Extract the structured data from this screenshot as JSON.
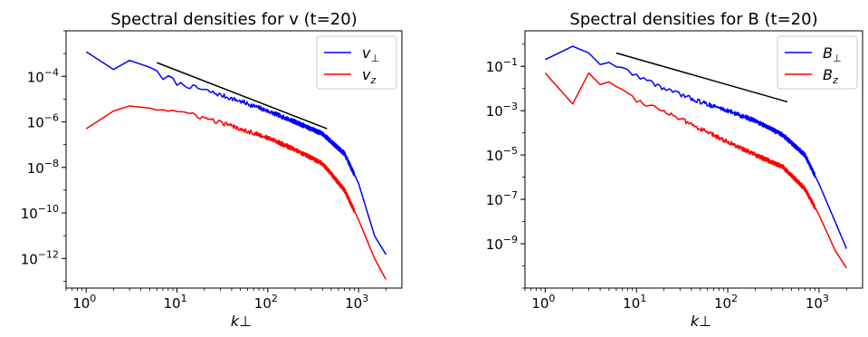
{
  "chart_data": [
    {
      "type": "line",
      "title": "Spectral densities for v (t=20)",
      "xlabel": "k⊥",
      "ylabel": "",
      "xscale": "log",
      "yscale": "log",
      "xlim": [
        0.6,
        3000
      ],
      "ylim": [
        5e-14,
        0.01
      ],
      "xticks": [
        {
          "value": 1,
          "base": "10",
          "exp": "0"
        },
        {
          "value": 10,
          "base": "10",
          "exp": "1"
        },
        {
          "value": 100,
          "base": "10",
          "exp": "2"
        },
        {
          "value": 1000,
          "base": "10",
          "exp": "3"
        }
      ],
      "yticks": [
        {
          "value": 0.0001,
          "base": "10",
          "exp": "−4"
        },
        {
          "value": 1e-06,
          "base": "10",
          "exp": "−6"
        },
        {
          "value": 1e-08,
          "base": "10",
          "exp": "−8"
        },
        {
          "value": 1e-10,
          "base": "10",
          "exp": "−10"
        },
        {
          "value": 1e-12,
          "base": "10",
          "exp": "−12"
        }
      ],
      "grid": false,
      "legend_position": "top-right",
      "series": [
        {
          "name": "v⊥",
          "legend_main": "v",
          "legend_sub": "⊥",
          "color": "#0000ff",
          "noise": 0.1,
          "points": [
            [
              1,
              0.0012
            ],
            [
              2,
              0.0002
            ],
            [
              3,
              0.0005
            ],
            [
              5,
              0.00025
            ],
            [
              6,
              0.0002
            ],
            [
              7,
              6e-05
            ],
            [
              8,
              0.0001
            ],
            [
              10,
              5e-05
            ],
            [
              20,
              2.5e-05
            ],
            [
              50,
              8e-06
            ],
            [
              100,
              3e-06
            ],
            [
              200,
              1e-06
            ],
            [
              400,
              3e-07
            ],
            [
              700,
              4e-08
            ],
            [
              1000,
              2e-09
            ],
            [
              1500,
              1e-11
            ],
            [
              2000,
              1.5e-12
            ]
          ]
        },
        {
          "name": "vz",
          "legend_main": "v",
          "legend_sub": "z",
          "color": "#ff0000",
          "noise": 0.1,
          "points": [
            [
              1,
              5e-07
            ],
            [
              2,
              3e-06
            ],
            [
              3,
              5e-06
            ],
            [
              5,
              4e-06
            ],
            [
              10,
              3e-06
            ],
            [
              20,
              1.5e-06
            ],
            [
              50,
              5e-07
            ],
            [
              100,
              2e-07
            ],
            [
              200,
              6e-08
            ],
            [
              400,
              1.5e-08
            ],
            [
              700,
              1e-09
            ],
            [
              1000,
              5e-11
            ],
            [
              1500,
              1e-12
            ],
            [
              2000,
              1.2e-13
            ]
          ]
        }
      ],
      "reference_line": {
        "color": "#000000",
        "points": [
          [
            6,
            0.0004
          ],
          [
            450,
            5e-07
          ]
        ]
      }
    },
    {
      "type": "line",
      "title": "Spectral densities for B (t=20)",
      "xlabel": "k⊥",
      "ylabel": "",
      "xscale": "log",
      "yscale": "log",
      "xlim": [
        0.6,
        3000
      ],
      "ylim": [
        1e-11,
        4
      ],
      "xticks": [
        {
          "value": 1,
          "base": "10",
          "exp": "0"
        },
        {
          "value": 10,
          "base": "10",
          "exp": "1"
        },
        {
          "value": 100,
          "base": "10",
          "exp": "2"
        },
        {
          "value": 1000,
          "base": "10",
          "exp": "3"
        }
      ],
      "yticks": [
        {
          "value": 0.1,
          "base": "10",
          "exp": "−1"
        },
        {
          "value": 0.001,
          "base": "10",
          "exp": "−3"
        },
        {
          "value": 1e-05,
          "base": "10",
          "exp": "−5"
        },
        {
          "value": 1e-07,
          "base": "10",
          "exp": "−7"
        },
        {
          "value": 1e-09,
          "base": "10",
          "exp": "−9"
        }
      ],
      "grid": false,
      "legend_position": "top-right",
      "series": [
        {
          "name": "B⊥",
          "legend_main": "B",
          "legend_sub": "⊥",
          "color": "#0000ff",
          "noise": 0.1,
          "points": [
            [
              1,
              0.2
            ],
            [
              2,
              0.8
            ],
            [
              3,
              0.4
            ],
            [
              4,
              0.12
            ],
            [
              5,
              0.15
            ],
            [
              7,
              0.08
            ],
            [
              10,
              0.04
            ],
            [
              20,
              0.01
            ],
            [
              50,
              0.0025
            ],
            [
              100,
              0.001
            ],
            [
              200,
              0.00035
            ],
            [
              400,
              8e-05
            ],
            [
              700,
              1e-05
            ],
            [
              1000,
              5e-07
            ],
            [
              1500,
              1e-08
            ],
            [
              2000,
              6e-10
            ]
          ]
        },
        {
          "name": "Bz",
          "legend_main": "B",
          "legend_sub": "z",
          "color": "#ff0000",
          "noise": 0.1,
          "points": [
            [
              1,
              0.05
            ],
            [
              2,
              0.002
            ],
            [
              3,
              0.05
            ],
            [
              4,
              0.015
            ],
            [
              5,
              0.02
            ],
            [
              7,
              0.01
            ],
            [
              10,
              0.003
            ],
            [
              20,
              0.001
            ],
            [
              50,
              0.00015
            ],
            [
              100,
              4e-05
            ],
            [
              200,
              1e-05
            ],
            [
              400,
              3e-06
            ],
            [
              700,
              3e-07
            ],
            [
              1000,
              2e-08
            ],
            [
              1500,
              5e-10
            ],
            [
              2000,
              8e-11
            ]
          ]
        }
      ],
      "reference_line": {
        "color": "#000000",
        "points": [
          [
            6,
            0.4
          ],
          [
            450,
            0.0025
          ]
        ]
      }
    }
  ]
}
